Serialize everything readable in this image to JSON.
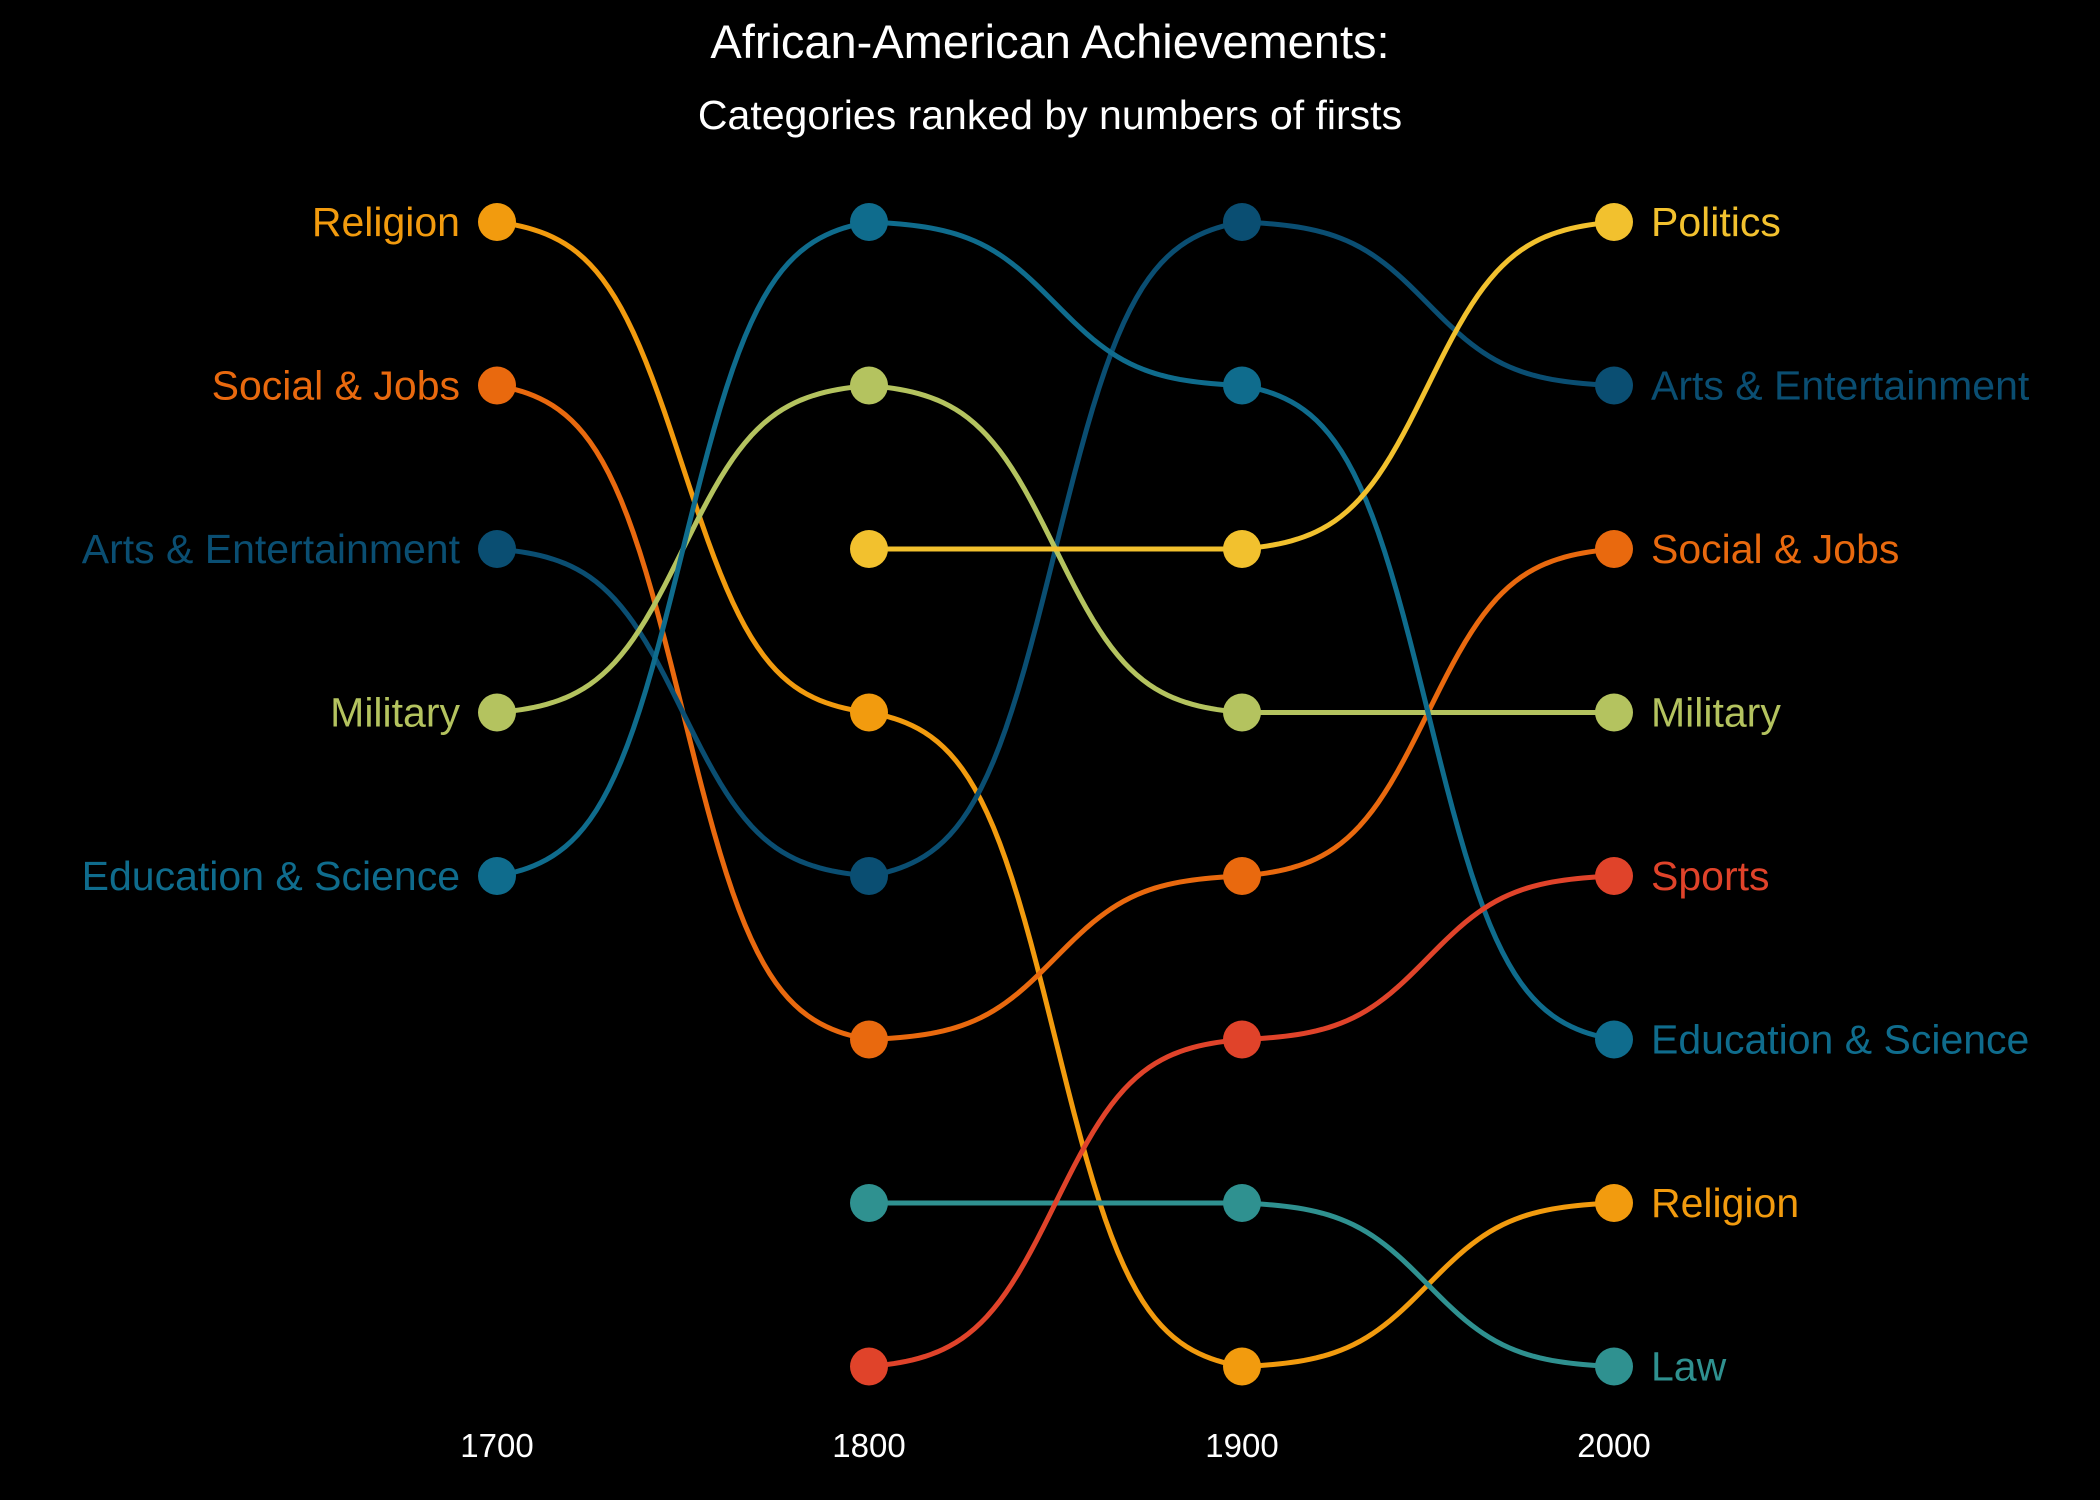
{
  "chart_data": {
    "type": "line",
    "title": "African-American Achievements:",
    "subtitle": "Categories ranked by numbers of firsts",
    "x": [
      1700,
      1800,
      1900,
      2000
    ],
    "x_tick_labels": [
      "1700",
      "1800",
      "1900",
      "2000"
    ],
    "y_axis": "rank (1 = most firsts, shown at top)",
    "grid": false,
    "legend": "none (direct labels at left and right ends)",
    "series": [
      {
        "name": "Religion",
        "color": "#F29B0E",
        "ranks": [
          1,
          4,
          8,
          7
        ]
      },
      {
        "name": "Social & Jobs",
        "color": "#E9690E",
        "ranks": [
          2,
          6,
          5,
          3
        ]
      },
      {
        "name": "Arts & Entertainment",
        "color": "#0A4E72",
        "ranks": [
          3,
          5,
          1,
          2
        ]
      },
      {
        "name": "Military",
        "color": "#B4C35F",
        "ranks": [
          4,
          2,
          4,
          4
        ]
      },
      {
        "name": "Education & Science",
        "color": "#0F6C8D",
        "ranks": [
          5,
          1,
          2,
          6
        ]
      },
      {
        "name": "Politics",
        "color": "#F2C12E",
        "ranks": [
          null,
          3,
          3,
          1
        ]
      },
      {
        "name": "Law",
        "color": "#2F9190",
        "ranks": [
          null,
          7,
          7,
          8
        ]
      },
      {
        "name": "Sports",
        "color": "#E0432A",
        "ranks": [
          null,
          8,
          6,
          5
        ]
      }
    ]
  }
}
